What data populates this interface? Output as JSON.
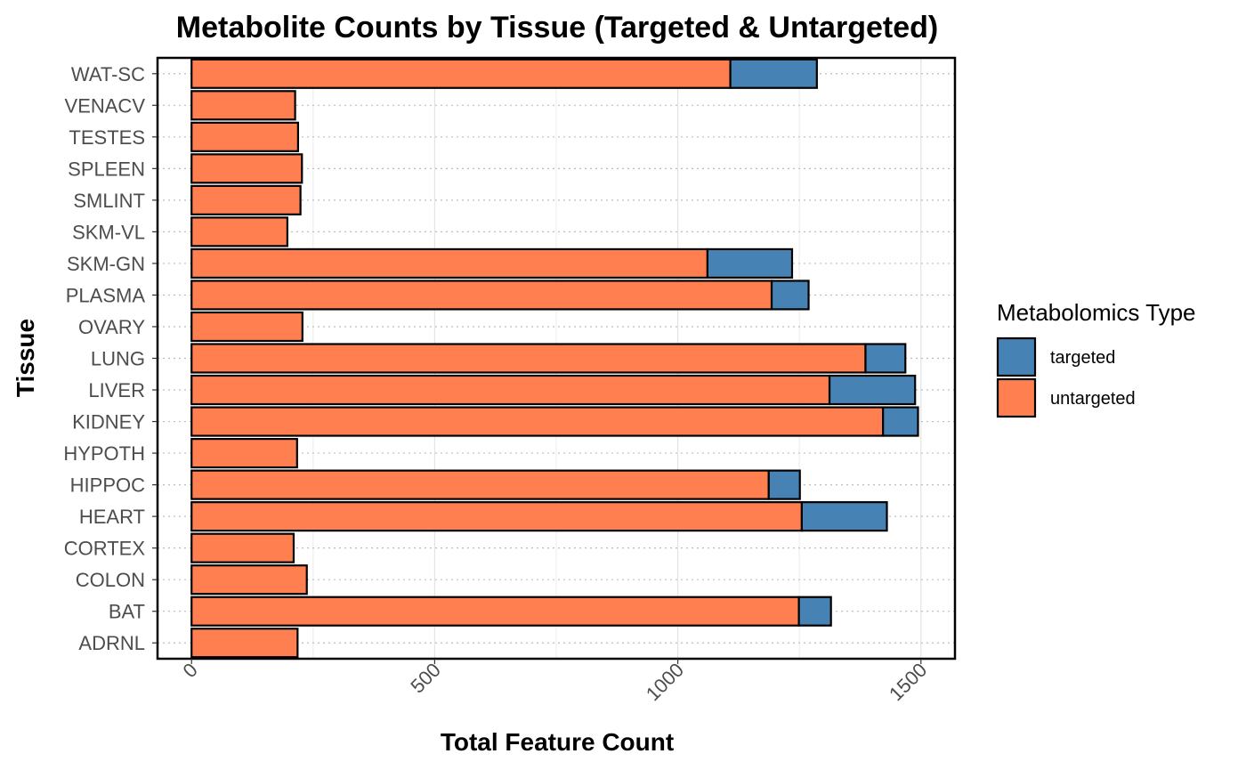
{
  "chart_data": {
    "type": "bar",
    "stacked": true,
    "orientation": "horizontal",
    "title": "Metabolite Counts by Tissue (Targeted & Untargeted)",
    "xlabel": "Total Feature Count",
    "ylabel": "Tissue",
    "xlim": [
      -70,
      1570
    ],
    "xticks": [
      0,
      500,
      1000,
      1500
    ],
    "xtick_labels": [
      "0",
      "500",
      "1000",
      "1500"
    ],
    "grid": "dotted horizontal, light vertical",
    "categories": [
      "ADRNL",
      "BAT",
      "COLON",
      "CORTEX",
      "HEART",
      "HIPPOC",
      "HYPOTH",
      "KIDNEY",
      "LIVER",
      "LUNG",
      "OVARY",
      "PLASMA",
      "SKM-GN",
      "SKM-VL",
      "SMLINT",
      "SPLEEN",
      "TESTES",
      "VENACV",
      "WAT-SC"
    ],
    "series": [
      {
        "name": "untargeted",
        "color": "#FF7F50",
        "values": [
          218,
          1249,
          237,
          210,
          1255,
          1187,
          217,
          1422,
          1312,
          1386,
          228,
          1193,
          1061,
          197,
          224,
          227,
          219,
          213,
          1108
        ]
      },
      {
        "name": "targeted",
        "color": "#4682B4",
        "values": [
          0,
          66,
          0,
          0,
          175,
          64,
          0,
          72,
          176,
          82,
          0,
          76,
          174,
          0,
          0,
          0,
          0,
          0,
          178
        ]
      }
    ],
    "legend": {
      "title": "Metabolomics Type",
      "entries": [
        "targeted",
        "untargeted"
      ],
      "position": "right"
    }
  }
}
